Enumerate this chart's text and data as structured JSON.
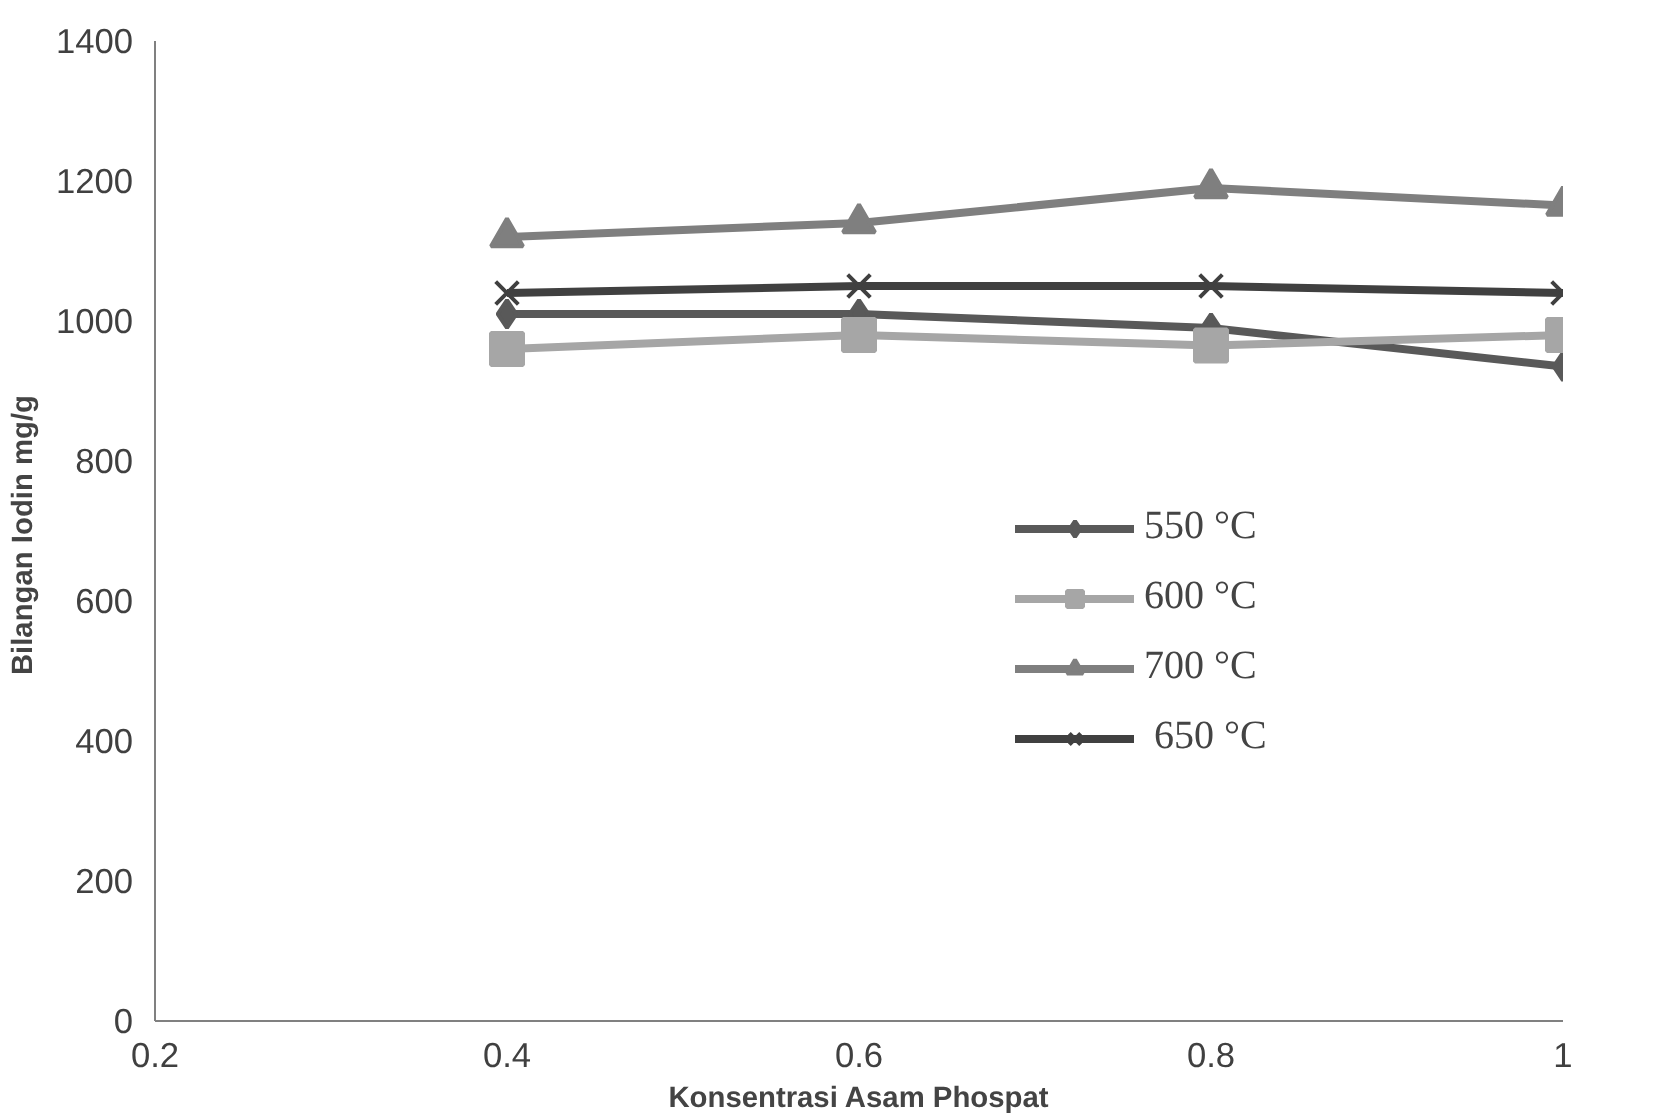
{
  "chart_data": {
    "type": "line",
    "xlabel": "Konsentrasi Asam Phospat",
    "ylabel": "Bilangan  Iodin mg/g",
    "x": [
      0.4,
      0.6,
      0.8,
      1
    ],
    "series": [
      {
        "name": "550 °C",
        "color": "#595959",
        "marker": "diamond",
        "values": [
          1010,
          1010,
          990,
          935
        ]
      },
      {
        "name": "600 °C",
        "color": "#a6a6a6",
        "marker": "square",
        "values": [
          960,
          980,
          965,
          980
        ]
      },
      {
        "name": "700 °C",
        "color": "#7f7f7f",
        "marker": "triangle",
        "values": [
          1120,
          1140,
          1190,
          1165
        ]
      },
      {
        "name": " 650 °C",
        "color": "#404040",
        "marker": "cross",
        "values": [
          1040,
          1050,
          1050,
          1040
        ]
      }
    ],
    "xlim": [
      0.2,
      1
    ],
    "xticks": [
      0.2,
      0.4,
      0.6,
      0.8,
      1
    ],
    "ylim": [
      0,
      1400
    ],
    "yticks": [
      0,
      200,
      400,
      600,
      800,
      1000,
      1200,
      1400
    ],
    "grid": false,
    "legend": "right"
  }
}
